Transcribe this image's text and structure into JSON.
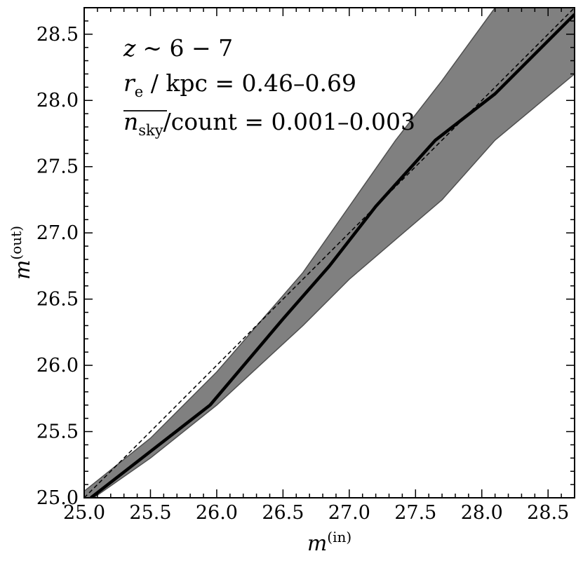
{
  "chart_data": {
    "type": "line",
    "xlabel": {
      "base": "m",
      "sup": "(in)"
    },
    "ylabel": {
      "base": "m",
      "sup": "(out)"
    },
    "xlim": [
      25.0,
      28.7
    ],
    "ylim": [
      25.0,
      28.7
    ],
    "xticks": [
      "25.0",
      "25.5",
      "26.0",
      "26.5",
      "27.0",
      "27.5",
      "28.0",
      "28.5"
    ],
    "yticks": [
      "25.0",
      "25.5",
      "26.0",
      "26.5",
      "27.0",
      "27.5",
      "28.0",
      "28.5"
    ],
    "annotation": {
      "line1_z": "z",
      "line1_rest": "∼ 6 − 7",
      "line2_r": "r",
      "line2_sub": "e",
      "line2_rest": " / kpc = 0.46–0.69",
      "line3_n": "n",
      "line3_sub": "sky",
      "line3_rest": "/count = 0.001–0.003"
    },
    "series": [
      {
        "role": "median",
        "x": [
          25.05,
          25.5,
          25.95,
          26.5,
          26.85,
          27.2,
          27.65,
          28.1,
          28.7
        ],
        "y": [
          25.0,
          25.35,
          25.7,
          26.35,
          26.75,
          27.2,
          27.7,
          28.05,
          28.65
        ]
      }
    ],
    "band": {
      "x": [
        25.0,
        25.5,
        26.0,
        26.65,
        27.0,
        27.35,
        27.7,
        28.1,
        28.7
      ],
      "lower": [
        24.95,
        25.3,
        25.7,
        26.3,
        26.65,
        26.95,
        27.25,
        27.7,
        28.2
      ],
      "upper": [
        25.05,
        25.45,
        25.95,
        26.7,
        27.2,
        27.7,
        28.15,
        28.7,
        28.95
      ]
    },
    "reference": {
      "style": "dashed",
      "relation": "y = x"
    },
    "colors": {
      "band": "#808080",
      "band_edge": "#505050",
      "line": "#000000"
    }
  }
}
